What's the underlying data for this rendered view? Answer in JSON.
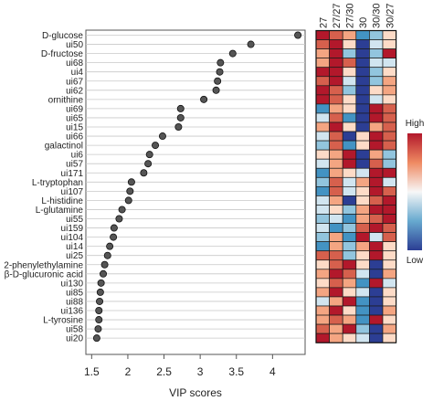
{
  "chart_data": {
    "type": "scatter",
    "xlabel": "VIP scores",
    "xlim": [
      1.42,
      4.45
    ],
    "xticks": [
      1.5,
      2,
      2.5,
      3,
      3.5,
      4
    ],
    "xtick_labels": [
      "1.5",
      "2",
      "2.5",
      "3",
      "3.5",
      "4"
    ],
    "grid": "horizontal",
    "categories": [
      "D-glucose",
      "ui50",
      "D-fructose",
      "ui68",
      "ui4",
      "ui67",
      "ui62",
      "ornithine",
      "ui69",
      "ui65",
      "ui15",
      "ui66",
      "galactinol",
      "ui6",
      "ui57",
      "ui171",
      "L-tryptophan",
      "ui107",
      "L-histidine",
      "L-glutamine",
      "ui55",
      "ui159",
      "ui104",
      "ui14",
      "ui25",
      "2-phenylethylamine",
      "β-D-glucuronic acid",
      "ui130",
      "ui85",
      "ui88",
      "ui136",
      "L-tyrosine",
      "ui58",
      "ui20"
    ],
    "values": [
      4.35,
      3.7,
      3.45,
      3.28,
      3.27,
      3.24,
      3.22,
      3.05,
      2.73,
      2.73,
      2.7,
      2.48,
      2.38,
      2.3,
      2.28,
      2.22,
      2.05,
      2.03,
      2.01,
      1.92,
      1.88,
      1.81,
      1.8,
      1.75,
      1.72,
      1.68,
      1.66,
      1.63,
      1.62,
      1.61,
      1.6,
      1.6,
      1.59,
      1.57
    ],
    "heatmap": {
      "columns": [
        "27",
        "27/27",
        "27/30",
        "30",
        "30/30",
        "30/27"
      ],
      "legend_high": "High",
      "legend_low": "Low",
      "colors": [
        "#b2182b",
        "#d6604d",
        "#f4a582",
        "#fddbc7",
        "#d1e5f0",
        "#92c5de",
        "#4393c3",
        "#2c3e94"
      ],
      "levels": [
        [
          0,
          1,
          2,
          6,
          5,
          3
        ],
        [
          1,
          0,
          3,
          7,
          4,
          3
        ],
        [
          2,
          0,
          5,
          7,
          5,
          0
        ],
        [
          2,
          0,
          1,
          7,
          4,
          4
        ],
        [
          0,
          0,
          3,
          7,
          5,
          3
        ],
        [
          1,
          0,
          4,
          7,
          5,
          2
        ],
        [
          0,
          1,
          5,
          7,
          3,
          2
        ],
        [
          0,
          1,
          3,
          7,
          4,
          3
        ],
        [
          6,
          2,
          3,
          7,
          0,
          1
        ],
        [
          4,
          1,
          6,
          7,
          0,
          1
        ],
        [
          2,
          0,
          3,
          7,
          2,
          1
        ],
        [
          4,
          1,
          7,
          3,
          0,
          1
        ],
        [
          5,
          1,
          6,
          3,
          0,
          1
        ],
        [
          3,
          2,
          0,
          7,
          2,
          5
        ],
        [
          4,
          2,
          0,
          7,
          1,
          5
        ],
        [
          6,
          2,
          3,
          4,
          0,
          0
        ],
        [
          5,
          1,
          4,
          2,
          0,
          4
        ],
        [
          6,
          1,
          4,
          3,
          0,
          1
        ],
        [
          4,
          2,
          7,
          3,
          1,
          0
        ],
        [
          4,
          3,
          5,
          2,
          0,
          0
        ],
        [
          5,
          4,
          6,
          2,
          1,
          0
        ],
        [
          4,
          6,
          5,
          1,
          0,
          1
        ],
        [
          5,
          2,
          6,
          0,
          4,
          1
        ],
        [
          6,
          2,
          5,
          2,
          0,
          3
        ],
        [
          1,
          1,
          5,
          3,
          0,
          3
        ],
        [
          3,
          1,
          0,
          3,
          7,
          3
        ],
        [
          2,
          0,
          1,
          4,
          7,
          2
        ],
        [
          3,
          1,
          2,
          6,
          0,
          4
        ],
        [
          2,
          0,
          3,
          4,
          7,
          3
        ],
        [
          4,
          2,
          0,
          6,
          7,
          3
        ],
        [
          2,
          0,
          3,
          6,
          7,
          2
        ],
        [
          2,
          1,
          2,
          6,
          0,
          3
        ],
        [
          1,
          2,
          0,
          5,
          7,
          2
        ],
        [
          0,
          2,
          3,
          4,
          7,
          3
        ]
      ]
    }
  }
}
